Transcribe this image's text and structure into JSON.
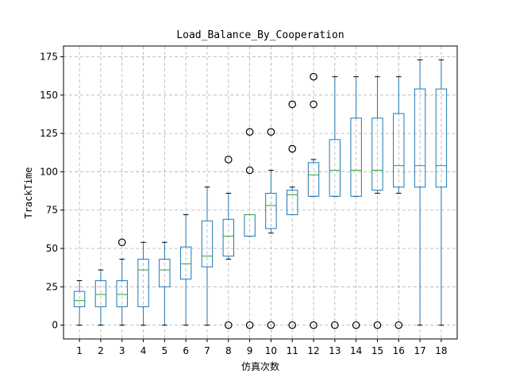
{
  "chart_data": {
    "type": "boxplot",
    "title": "Load_Balance_By_Cooperation",
    "xlabel": "仿真次数",
    "ylabel": "TrackTime",
    "ylim": [
      -9,
      182
    ],
    "yticks": [
      0,
      25,
      50,
      75,
      100,
      125,
      150,
      175
    ],
    "grid": true,
    "colors": {
      "box": "#1f77b4",
      "median": "#2ca02c",
      "flier": "#000000",
      "grid": "#b0b0b0"
    },
    "categories": [
      "1",
      "2",
      "3",
      "4",
      "5",
      "6",
      "7",
      "8",
      "9",
      "10",
      "11",
      "12",
      "13",
      "14",
      "15",
      "16",
      "17",
      "18"
    ],
    "boxes": [
      {
        "label": "1",
        "whislo": 0,
        "q1": 12,
        "med": 16,
        "q3": 22,
        "whishi": 29,
        "fliers": []
      },
      {
        "label": "2",
        "whislo": 0,
        "q1": 12,
        "med": 20,
        "q3": 29,
        "whishi": 36,
        "fliers": []
      },
      {
        "label": "3",
        "whislo": 0,
        "q1": 12,
        "med": 20,
        "q3": 29,
        "whishi": 43,
        "fliers": [
          54
        ]
      },
      {
        "label": "4",
        "whislo": 0,
        "q1": 12,
        "med": 36,
        "q3": 43,
        "whishi": 54,
        "fliers": []
      },
      {
        "label": "5",
        "whislo": 0,
        "q1": 25,
        "med": 36,
        "q3": 43,
        "whishi": 54,
        "fliers": []
      },
      {
        "label": "6",
        "whislo": 0,
        "q1": 30,
        "med": 40,
        "q3": 51,
        "whishi": 72,
        "fliers": []
      },
      {
        "label": "7",
        "whislo": 0,
        "q1": 38,
        "med": 45,
        "q3": 68,
        "whishi": 90,
        "fliers": []
      },
      {
        "label": "8",
        "whislo": 43,
        "q1": 45,
        "med": 58,
        "q3": 69,
        "whishi": 86,
        "fliers": [
          0,
          108
        ]
      },
      {
        "label": "9",
        "whislo": 58,
        "q1": 58,
        "med": 72,
        "q3": 72,
        "whishi": 72,
        "fliers": [
          0,
          101,
          126
        ]
      },
      {
        "label": "10",
        "whislo": 60,
        "q1": 63,
        "med": 78,
        "q3": 86,
        "whishi": 101,
        "fliers": [
          0,
          126
        ]
      },
      {
        "label": "11",
        "whislo": 72,
        "q1": 72,
        "med": 85,
        "q3": 88,
        "whishi": 90,
        "fliers": [
          0,
          115,
          144
        ]
      },
      {
        "label": "12",
        "whislo": 84,
        "q1": 84,
        "med": 98,
        "q3": 106,
        "whishi": 108,
        "fliers": [
          0,
          144,
          162
        ]
      },
      {
        "label": "13",
        "whislo": 84,
        "q1": 84,
        "med": 101,
        "q3": 121,
        "whishi": 162,
        "fliers": [
          0
        ]
      },
      {
        "label": "14",
        "whislo": 84,
        "q1": 84,
        "med": 101,
        "q3": 135,
        "whishi": 162,
        "fliers": [
          0
        ]
      },
      {
        "label": "15",
        "whislo": 86,
        "q1": 88,
        "med": 101,
        "q3": 135,
        "whishi": 162,
        "fliers": [
          0
        ]
      },
      {
        "label": "16",
        "whislo": 86,
        "q1": 90,
        "med": 104,
        "q3": 138,
        "whishi": 162,
        "fliers": [
          0
        ]
      },
      {
        "label": "17",
        "whislo": 0,
        "q1": 90,
        "med": 104,
        "q3": 154,
        "whishi": 173,
        "fliers": []
      },
      {
        "label": "18",
        "whislo": 0,
        "q1": 90,
        "med": 104,
        "q3": 154,
        "whishi": 173,
        "fliers": []
      }
    ]
  }
}
